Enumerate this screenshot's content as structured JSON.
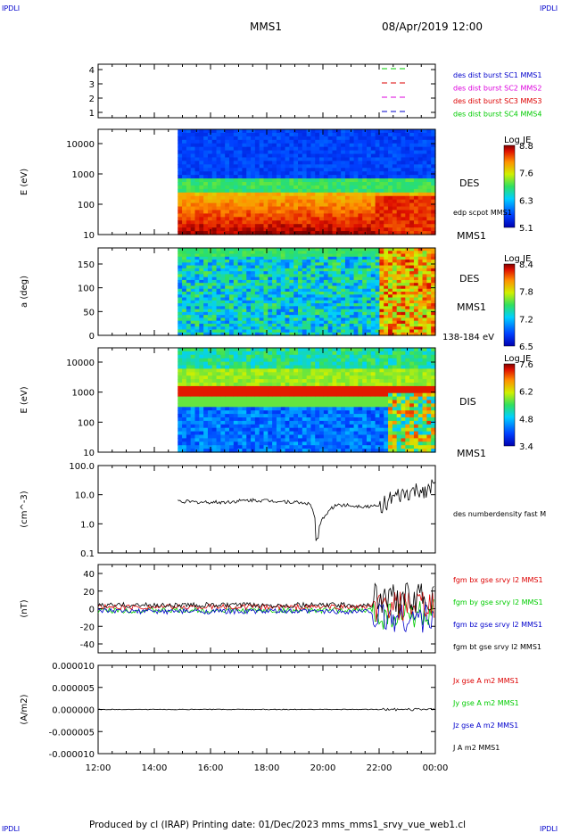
{
  "header": {
    "corner_tl": "IPDLI",
    "corner_tr": "IPDLI",
    "corner_bl": "IPDLI",
    "corner_br": "IPDLI",
    "spacecraft": "MMS1",
    "datetime": "08/Apr/2019 12:00"
  },
  "footer": {
    "text": "Produced by cl (IRAP)   Printing date: 01/Dec/2023   mms_mms1_srvy_vue_web1.cl"
  },
  "colors": {
    "blue": "#0000cc",
    "magenta": "#dd00dd",
    "red": "#dd0000",
    "green": "#00cc00",
    "black": "#000000"
  },
  "time_axis": {
    "ticks": [
      "12:00",
      "14:00",
      "16:00",
      "18:00",
      "20:00",
      "22:00",
      "00:00"
    ]
  },
  "chart_data": [
    {
      "type": "line",
      "panel": "burst",
      "yticks": [
        "4",
        "3",
        "2",
        "1"
      ],
      "legend": [
        {
          "label": "des dist burst SC1 MMS1",
          "color": "#0000cc"
        },
        {
          "label": "des dist burst SC2 MMS2",
          "color": "#dd00dd"
        },
        {
          "label": "des dist burst SC3 MMS3",
          "color": "#dd0000"
        },
        {
          "label": "des dist burst SC4 MMS4",
          "color": "#00cc00"
        }
      ]
    },
    {
      "type": "heatmap",
      "panel": "des-energy",
      "ylabel": "E (eV)",
      "yscale": "log",
      "yticks": [
        "10000",
        "1000",
        "100",
        "10"
      ],
      "label": "DES",
      "sublabel": "edp scpot MMS1",
      "sc": "MMS1",
      "colorbar": {
        "title": "Log JE",
        "ticks": [
          "8.8",
          "7.6",
          "6.3",
          "5.1"
        ]
      },
      "data_start": "14:50"
    },
    {
      "type": "heatmap",
      "panel": "des-pitch",
      "ylabel": "a (deg)",
      "yticks": [
        "150",
        "100",
        "50",
        "0"
      ],
      "label": "DES",
      "sc": "MMS1",
      "range_label": "138-184 eV",
      "colorbar": {
        "title": "Log JE",
        "ticks": [
          "8.4",
          "7.8",
          "7.2",
          "6.5"
        ]
      },
      "data_start": "14:50"
    },
    {
      "type": "heatmap",
      "panel": "dis-energy",
      "ylabel": "E (eV)",
      "yscale": "log",
      "yticks": [
        "10000",
        "1000",
        "100",
        "10"
      ],
      "label": "DIS",
      "sc": "MMS1",
      "colorbar": {
        "title": "Log JE",
        "ticks": [
          "7.6",
          "6.2",
          "4.8",
          "3.4"
        ]
      },
      "data_start": "14:50"
    },
    {
      "type": "line",
      "panel": "density",
      "ylabel": "(cm^-3)",
      "yscale": "log",
      "yticks": [
        "100.0",
        "10.0",
        "1.0",
        "0.1"
      ],
      "ylim": [
        0.1,
        100
      ],
      "series": [
        {
          "name": "des numberdensity fast M",
          "color": "#000000"
        }
      ],
      "x_hours": [
        14.85,
        15.5,
        16.5,
        17.5,
        18.5,
        19.5,
        19.8,
        20.5,
        21.5,
        22.0,
        22.5,
        23.0,
        23.5,
        24.0
      ],
      "values": [
        6.0,
        5.5,
        5.5,
        6.5,
        6.0,
        5.0,
        0.3,
        4.5,
        4.0,
        4.0,
        7.0,
        10.0,
        14.0,
        18.0
      ]
    },
    {
      "type": "line",
      "panel": "bfield",
      "ylabel": "(nT)",
      "yticks": [
        "40",
        "20",
        "0",
        "-20",
        "-40"
      ],
      "ylim": [
        -50,
        50
      ],
      "series": [
        {
          "name": "fgm bx gse srvy l2 MMS1",
          "color": "#dd0000"
        },
        {
          "name": "fgm by gse srvy l2 MMS1",
          "color": "#00cc00"
        },
        {
          "name": "fgm bz gse srvy l2 MMS1",
          "color": "#0000cc"
        },
        {
          "name": "fgm bt gse srvy l2 MMS1",
          "color": "#000000"
        }
      ]
    },
    {
      "type": "line",
      "panel": "current",
      "ylabel": "(A/m2)",
      "yticks": [
        "0.000010",
        "0.000005",
        "0.000000",
        "-0.000005",
        "-0.000010"
      ],
      "ylim": [
        -1e-05,
        1e-05
      ],
      "series": [
        {
          "name": "Jx gse A m2 MMS1",
          "color": "#dd0000"
        },
        {
          "name": "Jy gse A m2 MMS1",
          "color": "#00cc00"
        },
        {
          "name": "Jz gse A m2 MMS1",
          "color": "#0000cc"
        },
        {
          "name": "J A m2 MMS1",
          "color": "#000000"
        }
      ]
    }
  ]
}
